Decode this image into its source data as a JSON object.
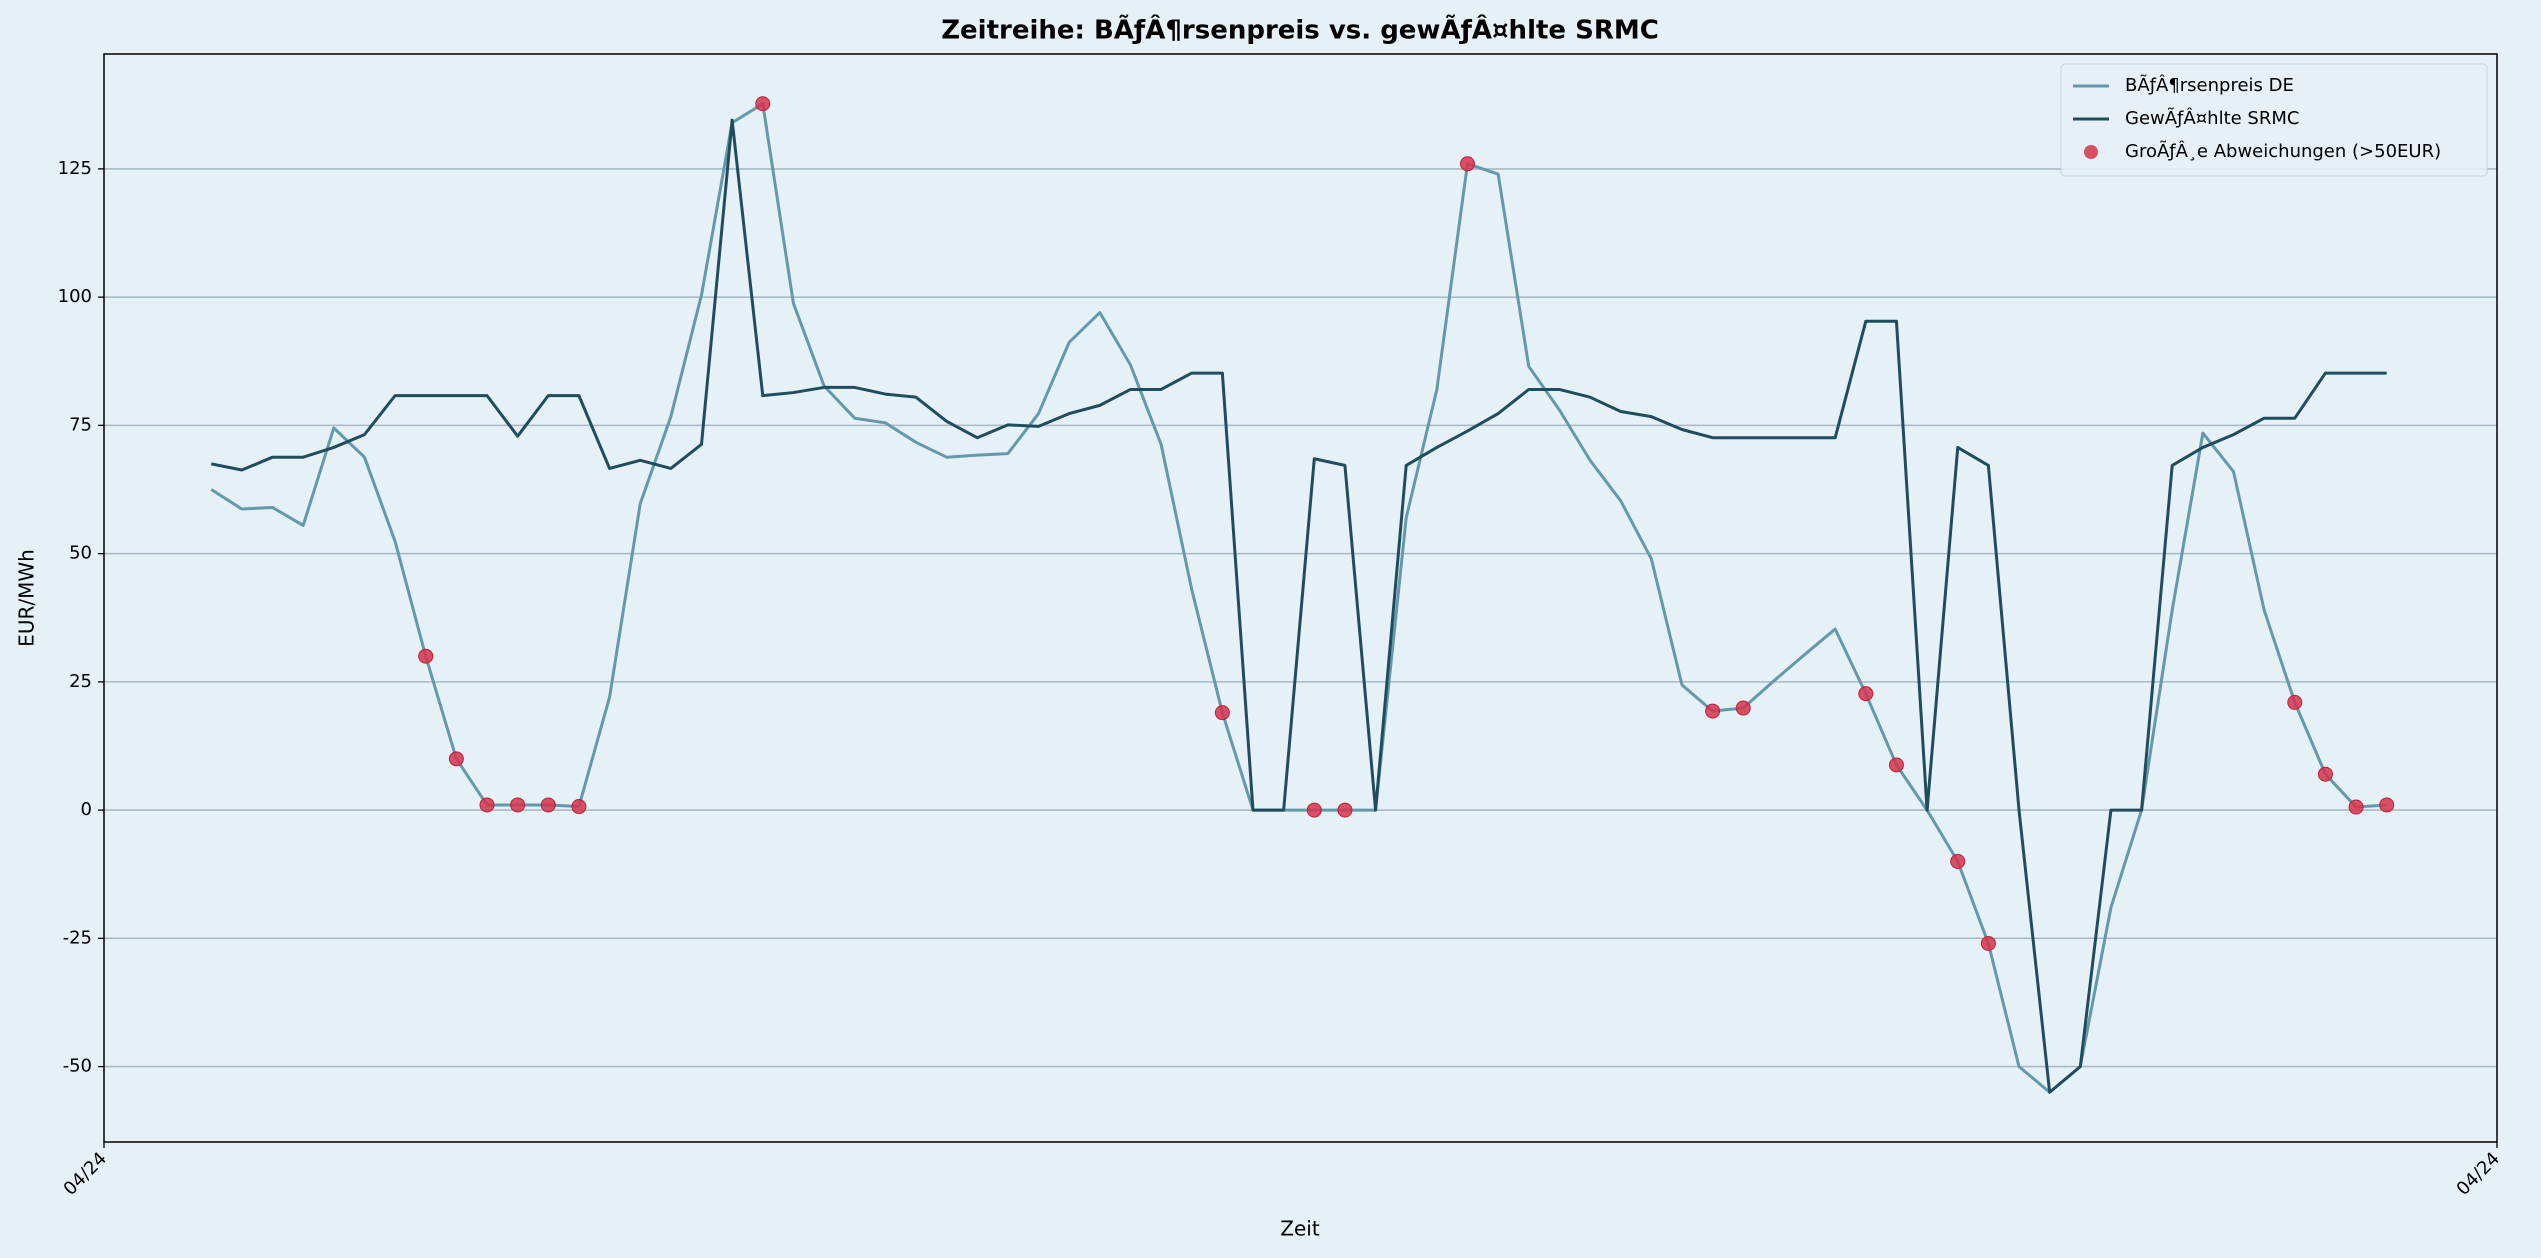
{
  "chart_data": {
    "type": "line",
    "title": "Zeitreihe: BÃƒÂ¶rsenpreis vs. gewÃƒÂ¤hlte SRMC",
    "xlabel": "Zeit",
    "ylabel": "EUR/MWh",
    "x": [
      0,
      1,
      2,
      3,
      4,
      5,
      6,
      7,
      8,
      9,
      10,
      11,
      12,
      13,
      14,
      15,
      16,
      17,
      18,
      19,
      20,
      21,
      22,
      23,
      24,
      25,
      26,
      27,
      28,
      29,
      30,
      31,
      32,
      33,
      34,
      35,
      36,
      37,
      38,
      39,
      40,
      41,
      42,
      43,
      44,
      45,
      46,
      47,
      48,
      49,
      50,
      51,
      52,
      53,
      54,
      55,
      56,
      57,
      58,
      59,
      60,
      61,
      62,
      63,
      64,
      65,
      66,
      67,
      68,
      69,
      70,
      71
    ],
    "series": [
      {
        "name": "BÃƒÂ¶rsenpreis DE",
        "type": "line",
        "color": "#6399ab",
        "values": [
          62.5,
          58.7,
          59,
          55.5,
          74.5,
          68.8,
          52.4,
          30,
          10,
          1,
          1,
          1,
          0.7,
          22,
          59.7,
          76.7,
          100.4,
          134,
          137.7,
          98.8,
          82.7,
          76.4,
          75.5,
          71.7,
          68.8,
          69.2,
          69.5,
          77.3,
          91.2,
          97,
          86.8,
          71.3,
          43,
          19,
          0,
          0,
          0,
          0,
          0,
          57,
          82,
          126,
          124,
          86.5,
          78,
          68.2,
          60.3,
          49,
          24.4,
          19.3,
          19.9,
          25.2,
          30.3,
          35.3,
          22.7,
          8.8,
          0,
          -10,
          -26,
          -50,
          -55,
          -50,
          -19,
          0,
          39,
          73.5,
          66,
          39,
          21,
          7,
          0.6,
          1
        ]
      },
      {
        "name": "GewÃƒÂ¤hlte SRMC",
        "type": "line",
        "color": "#1f4d5e",
        "values": [
          67.5,
          66.3,
          68.8,
          68.8,
          70.7,
          73.2,
          80.8,
          80.8,
          80.8,
          80.8,
          72.9,
          80.8,
          80.8,
          66.6,
          68.2,
          66.6,
          71.3,
          134.5,
          80.8,
          81.4,
          82.4,
          82.4,
          81.1,
          80.5,
          75.8,
          72.6,
          75.1,
          74.8,
          77.3,
          78.9,
          82,
          82,
          85.2,
          85.2,
          0,
          0,
          68.5,
          67.2,
          0,
          67.2,
          70.7,
          73.9,
          77.3,
          82,
          82,
          80.5,
          77.7,
          76.7,
          74.2,
          72.6,
          72.6,
          72.6,
          72.6,
          72.6,
          95.3,
          95.3,
          0,
          70.7,
          67.2,
          0,
          -55,
          -50,
          0,
          0,
          67.2,
          70.7,
          73.2,
          76.4,
          76.4,
          85.2,
          85.2,
          85.2
        ]
      },
      {
        "name": "GroÃƒÂ¸e Abweichungen (>50EUR)",
        "type": "scatter",
        "color": "#d6334c",
        "x": [
          7,
          8,
          9,
          10,
          11,
          12,
          18,
          33,
          36,
          37,
          41,
          49,
          50,
          54,
          55,
          57,
          58,
          68,
          69,
          70,
          71
        ],
        "values": [
          30,
          10,
          1,
          1,
          1,
          0.7,
          137.7,
          19,
          0,
          0,
          126,
          19.3,
          19.9,
          22.7,
          8.8,
          -10,
          -26,
          21,
          7,
          0.6,
          1
        ]
      }
    ],
    "xlim": [
      -3.5,
      74.6
    ],
    "xticks": [
      {
        "value": -3.5,
        "label": "04/24"
      },
      {
        "value": 74.6,
        "label": "04/24"
      }
    ],
    "ylim": [
      -64.7,
      147.4
    ],
    "yticks": [
      -50,
      -25,
      0,
      25,
      50,
      75,
      100,
      125
    ],
    "grid": "y",
    "legend": "upper right"
  }
}
